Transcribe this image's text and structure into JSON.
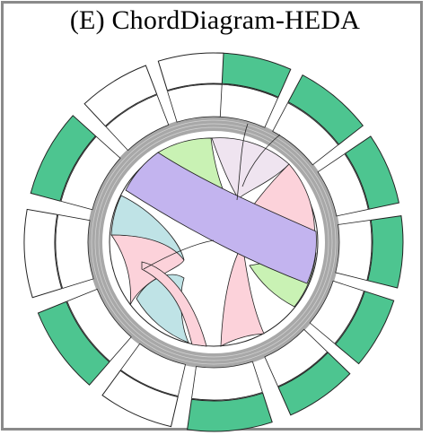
{
  "title": "(E) ChordDiagram-HEDA",
  "colors": {
    "green_segment": "#4dc590",
    "white_segment": "#ffffff",
    "gray_ring": "#a8a8a8",
    "stroke": "#222222",
    "ribbon_purple": "#c3b4ef",
    "ribbon_green": "#c9f2b4",
    "ribbon_pink": "#fcd2da",
    "ribbon_cyan": "#bfe3e6",
    "ribbon_lavender": "#efe4f0"
  },
  "outer_segments": [
    {
      "id": "s1",
      "fill": "green"
    },
    {
      "id": "s2",
      "fill": "green"
    },
    {
      "id": "s3",
      "fill": "green"
    },
    {
      "id": "s4",
      "fill": "green"
    },
    {
      "id": "s5",
      "fill": "green"
    },
    {
      "id": "s6",
      "fill": "green"
    },
    {
      "id": "s7",
      "fill": "green"
    },
    {
      "id": "s8",
      "fill": "white"
    },
    {
      "id": "s9",
      "fill": "green"
    },
    {
      "id": "s10",
      "fill": "white"
    },
    {
      "id": "s11",
      "fill": "green"
    },
    {
      "id": "s12",
      "fill": "white"
    },
    {
      "id": "s13",
      "fill": "white"
    }
  ]
}
